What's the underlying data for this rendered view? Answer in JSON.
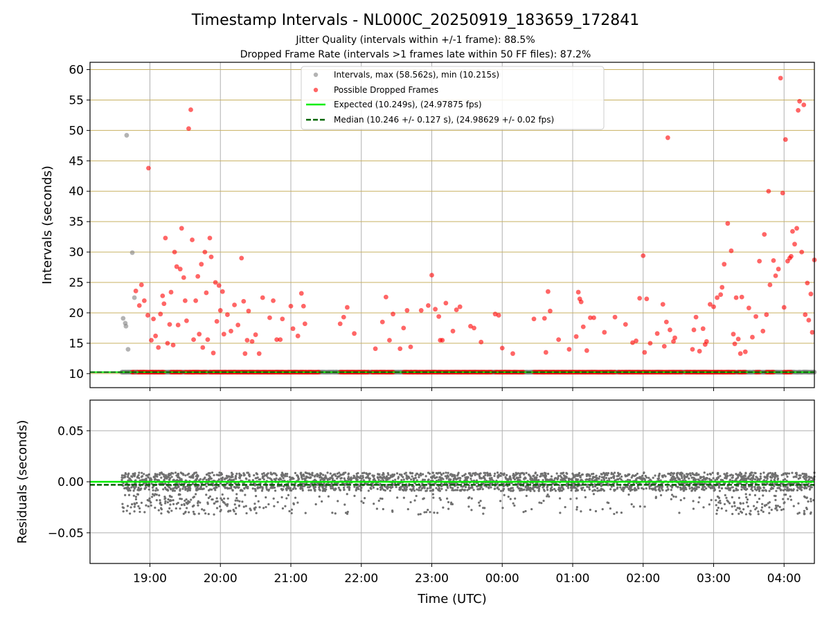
{
  "chart_data": [
    {
      "type": "scatter",
      "title": "Timestamp Intervals - NL000C_20250919_183659_172841",
      "subtitle_1": "Jitter Quality (intervals within +/-1 frame): 88.5%",
      "subtitle_2": "Dropped Frame Rate (intervals >1 frames late within 50 FF files): 87.2%",
      "ylabel": "Intervals (seconds)",
      "x_unit": "hours since 19:00 UTC (next-day hours continue past 24)",
      "xlim": [
        -0.85,
        9.43
      ],
      "ylim": [
        7.7,
        61.2
      ],
      "yticks": [
        10,
        15,
        20,
        25,
        30,
        35,
        40,
        45,
        50,
        55,
        60
      ],
      "ytick_labels": [
        "10",
        "15",
        "20",
        "25",
        "30",
        "35",
        "40",
        "45",
        "50",
        "55",
        "60"
      ],
      "xticks": [
        0,
        1,
        2,
        3,
        4,
        5,
        6,
        7,
        8,
        9
      ],
      "grid": "horizontal dark-goldenrod lines at y ticks, vertical grey lines at x ticks",
      "legend": {
        "position": "top-center",
        "entries": [
          "Intervals, max (58.562s), min (10.215s)",
          "Possible Dropped Frames",
          "Expected (10.249s), (24.97875 fps)",
          "Median (10.246 +/- 0.127 s), (24.98629 +/- 0.02 fps)"
        ]
      },
      "expected_interval": 10.249,
      "median_interval": 10.246,
      "baseline_series_range": [
        -0.4,
        9.43
      ],
      "intervals_grey": [
        [
          -0.38,
          19.1
        ],
        [
          -0.35,
          18.3
        ],
        [
          -0.34,
          17.8
        ],
        [
          -0.31,
          14.0
        ],
        [
          -0.33,
          49.2
        ],
        [
          -0.25,
          29.9
        ],
        [
          -0.22,
          22.5
        ],
        [
          -0.2,
          10.25
        ]
      ],
      "dropped_frames_red": [
        [
          -0.02,
          43.8
        ],
        [
          -0.2,
          23.6
        ],
        [
          -0.15,
          21.2
        ],
        [
          -0.12,
          24.6
        ],
        [
          -0.08,
          22.0
        ],
        [
          -0.03,
          19.6
        ],
        [
          0.02,
          15.5
        ],
        [
          0.05,
          19.0
        ],
        [
          0.08,
          16.2
        ],
        [
          0.12,
          14.3
        ],
        [
          0.15,
          19.8
        ],
        [
          0.18,
          22.8
        ],
        [
          0.2,
          21.5
        ],
        [
          0.22,
          32.3
        ],
        [
          0.25,
          15.0
        ],
        [
          0.28,
          18.1
        ],
        [
          0.3,
          23.4
        ],
        [
          0.33,
          14.7
        ],
        [
          0.35,
          30.0
        ],
        [
          0.38,
          27.6
        ],
        [
          0.4,
          18.0
        ],
        [
          0.43,
          27.2
        ],
        [
          0.45,
          33.9
        ],
        [
          0.48,
          25.8
        ],
        [
          0.5,
          22.0
        ],
        [
          0.52,
          18.7
        ],
        [
          0.55,
          50.3
        ],
        [
          0.58,
          53.4
        ],
        [
          0.6,
          32.0
        ],
        [
          0.62,
          15.6
        ],
        [
          0.65,
          22.0
        ],
        [
          0.68,
          26.0
        ],
        [
          0.7,
          16.5
        ],
        [
          0.73,
          28.0
        ],
        [
          0.75,
          14.3
        ],
        [
          0.78,
          30.0
        ],
        [
          0.8,
          23.3
        ],
        [
          0.82,
          15.6
        ],
        [
          0.85,
          32.3
        ],
        [
          0.87,
          29.2
        ],
        [
          0.9,
          13.4
        ],
        [
          0.93,
          25.0
        ],
        [
          0.95,
          18.6
        ],
        [
          0.98,
          24.5
        ],
        [
          1.0,
          20.4
        ],
        [
          1.03,
          23.5
        ],
        [
          1.05,
          16.5
        ],
        [
          1.1,
          19.7
        ],
        [
          1.15,
          17.0
        ],
        [
          1.2,
          21.3
        ],
        [
          1.25,
          18.0
        ],
        [
          1.3,
          29.0
        ],
        [
          1.33,
          21.9
        ],
        [
          1.35,
          13.3
        ],
        [
          1.38,
          15.5
        ],
        [
          1.4,
          20.3
        ],
        [
          1.45,
          15.3
        ],
        [
          1.5,
          16.4
        ],
        [
          1.55,
          13.3
        ],
        [
          1.6,
          22.5
        ],
        [
          1.7,
          19.2
        ],
        [
          1.75,
          22.0
        ],
        [
          1.8,
          15.6
        ],
        [
          1.85,
          15.6
        ],
        [
          1.88,
          19.0
        ],
        [
          2.0,
          21.1
        ],
        [
          2.03,
          17.4
        ],
        [
          2.1,
          16.2
        ],
        [
          2.15,
          23.2
        ],
        [
          2.18,
          21.1
        ],
        [
          2.2,
          18.2
        ],
        [
          2.7,
          18.2
        ],
        [
          2.75,
          19.3
        ],
        [
          2.8,
          20.9
        ],
        [
          2.9,
          16.6
        ],
        [
          3.2,
          14.1
        ],
        [
          3.3,
          18.5
        ],
        [
          3.35,
          22.6
        ],
        [
          3.4,
          15.5
        ],
        [
          3.45,
          19.8
        ],
        [
          3.55,
          14.1
        ],
        [
          3.6,
          17.5
        ],
        [
          3.65,
          20.4
        ],
        [
          3.7,
          14.4
        ],
        [
          3.85,
          20.4
        ],
        [
          3.95,
          21.2
        ],
        [
          4.0,
          26.2
        ],
        [
          4.05,
          20.6
        ],
        [
          4.1,
          19.4
        ],
        [
          4.12,
          15.5
        ],
        [
          4.15,
          15.5
        ],
        [
          4.2,
          21.6
        ],
        [
          4.3,
          17.0
        ],
        [
          4.35,
          20.5
        ],
        [
          4.4,
          21.0
        ],
        [
          4.55,
          17.8
        ],
        [
          4.6,
          17.5
        ],
        [
          4.7,
          15.2
        ],
        [
          4.9,
          19.8
        ],
        [
          4.95,
          19.6
        ],
        [
          5.0,
          14.2
        ],
        [
          5.15,
          13.3
        ],
        [
          5.45,
          19.0
        ],
        [
          5.6,
          19.1
        ],
        [
          5.62,
          13.5
        ],
        [
          5.65,
          23.5
        ],
        [
          5.68,
          20.3
        ],
        [
          5.8,
          15.6
        ],
        [
          5.95,
          14.0
        ],
        [
          6.05,
          16.1
        ],
        [
          6.08,
          23.4
        ],
        [
          6.1,
          22.3
        ],
        [
          6.12,
          21.8
        ],
        [
          6.15,
          17.7
        ],
        [
          6.2,
          13.8
        ],
        [
          6.25,
          19.2
        ],
        [
          6.3,
          19.2
        ],
        [
          6.45,
          16.8
        ],
        [
          6.6,
          19.3
        ],
        [
          6.75,
          18.1
        ],
        [
          6.85,
          15.1
        ],
        [
          6.9,
          15.4
        ],
        [
          6.95,
          22.4
        ],
        [
          7.0,
          29.4
        ],
        [
          7.02,
          13.5
        ],
        [
          7.05,
          22.3
        ],
        [
          7.1,
          15.0
        ],
        [
          7.2,
          16.6
        ],
        [
          7.28,
          21.4
        ],
        [
          7.3,
          14.5
        ],
        [
          7.33,
          18.5
        ],
        [
          7.35,
          48.8
        ],
        [
          7.38,
          17.2
        ],
        [
          7.43,
          15.3
        ],
        [
          7.45,
          15.9
        ],
        [
          7.7,
          14.0
        ],
        [
          7.72,
          17.2
        ],
        [
          7.75,
          19.3
        ],
        [
          7.8,
          13.7
        ],
        [
          7.85,
          17.4
        ],
        [
          7.88,
          14.8
        ],
        [
          7.9,
          15.3
        ],
        [
          7.95,
          21.4
        ],
        [
          8.0,
          21.0
        ],
        [
          8.05,
          22.5
        ],
        [
          8.1,
          23.0
        ],
        [
          8.12,
          24.2
        ],
        [
          8.15,
          28.0
        ],
        [
          8.2,
          34.7
        ],
        [
          8.25,
          30.2
        ],
        [
          8.28,
          16.5
        ],
        [
          8.3,
          14.9
        ],
        [
          8.32,
          22.5
        ],
        [
          8.35,
          15.7
        ],
        [
          8.38,
          13.3
        ],
        [
          8.4,
          22.6
        ],
        [
          8.45,
          13.6
        ],
        [
          8.5,
          20.8
        ],
        [
          8.55,
          16.0
        ],
        [
          8.6,
          19.4
        ],
        [
          8.65,
          28.5
        ],
        [
          8.7,
          17.0
        ],
        [
          8.72,
          32.9
        ],
        [
          8.75,
          19.7
        ],
        [
          8.78,
          40.0
        ],
        [
          8.8,
          24.6
        ],
        [
          8.85,
          28.6
        ],
        [
          8.88,
          26.1
        ],
        [
          8.92,
          27.2
        ],
        [
          8.95,
          58.6
        ],
        [
          8.98,
          39.7
        ],
        [
          9.0,
          20.9
        ],
        [
          9.02,
          48.5
        ],
        [
          9.05,
          28.5
        ],
        [
          9.08,
          29.0
        ],
        [
          9.1,
          29.3
        ],
        [
          9.12,
          33.4
        ],
        [
          9.15,
          31.3
        ],
        [
          9.18,
          33.9
        ],
        [
          9.2,
          53.3
        ],
        [
          9.22,
          54.8
        ],
        [
          9.25,
          30.0
        ],
        [
          9.28,
          54.2
        ],
        [
          9.3,
          19.7
        ],
        [
          9.33,
          24.9
        ],
        [
          9.35,
          18.8
        ],
        [
          9.38,
          23.1
        ],
        [
          9.4,
          16.8
        ],
        [
          9.43,
          28.7
        ]
      ]
    },
    {
      "type": "scatter",
      "ylabel": "Residuals (seconds)",
      "xlabel": "Time (UTC)",
      "xlim": [
        -0.85,
        9.43
      ],
      "ylim": [
        -0.08,
        0.08
      ],
      "yticks": [
        -0.05,
        0.0,
        0.05
      ],
      "ytick_labels": [
        "−0.05",
        "0.00",
        "0.05"
      ],
      "xticks": [
        0,
        1,
        2,
        3,
        4,
        5,
        6,
        7,
        8,
        9
      ],
      "xtick_labels": [
        "19:00",
        "20:00",
        "21:00",
        "22:00",
        "23:00",
        "00:00",
        "01:00",
        "02:00",
        "03:00",
        "04:00"
      ],
      "grid": "on",
      "expected_residual": 0.0,
      "median_residual": -0.003,
      "residual_band": [
        -0.009,
        0.009
      ],
      "residual_outlier_range": [
        -0.032,
        -0.012
      ],
      "residual_x_range": [
        -0.4,
        9.43
      ]
    }
  ]
}
